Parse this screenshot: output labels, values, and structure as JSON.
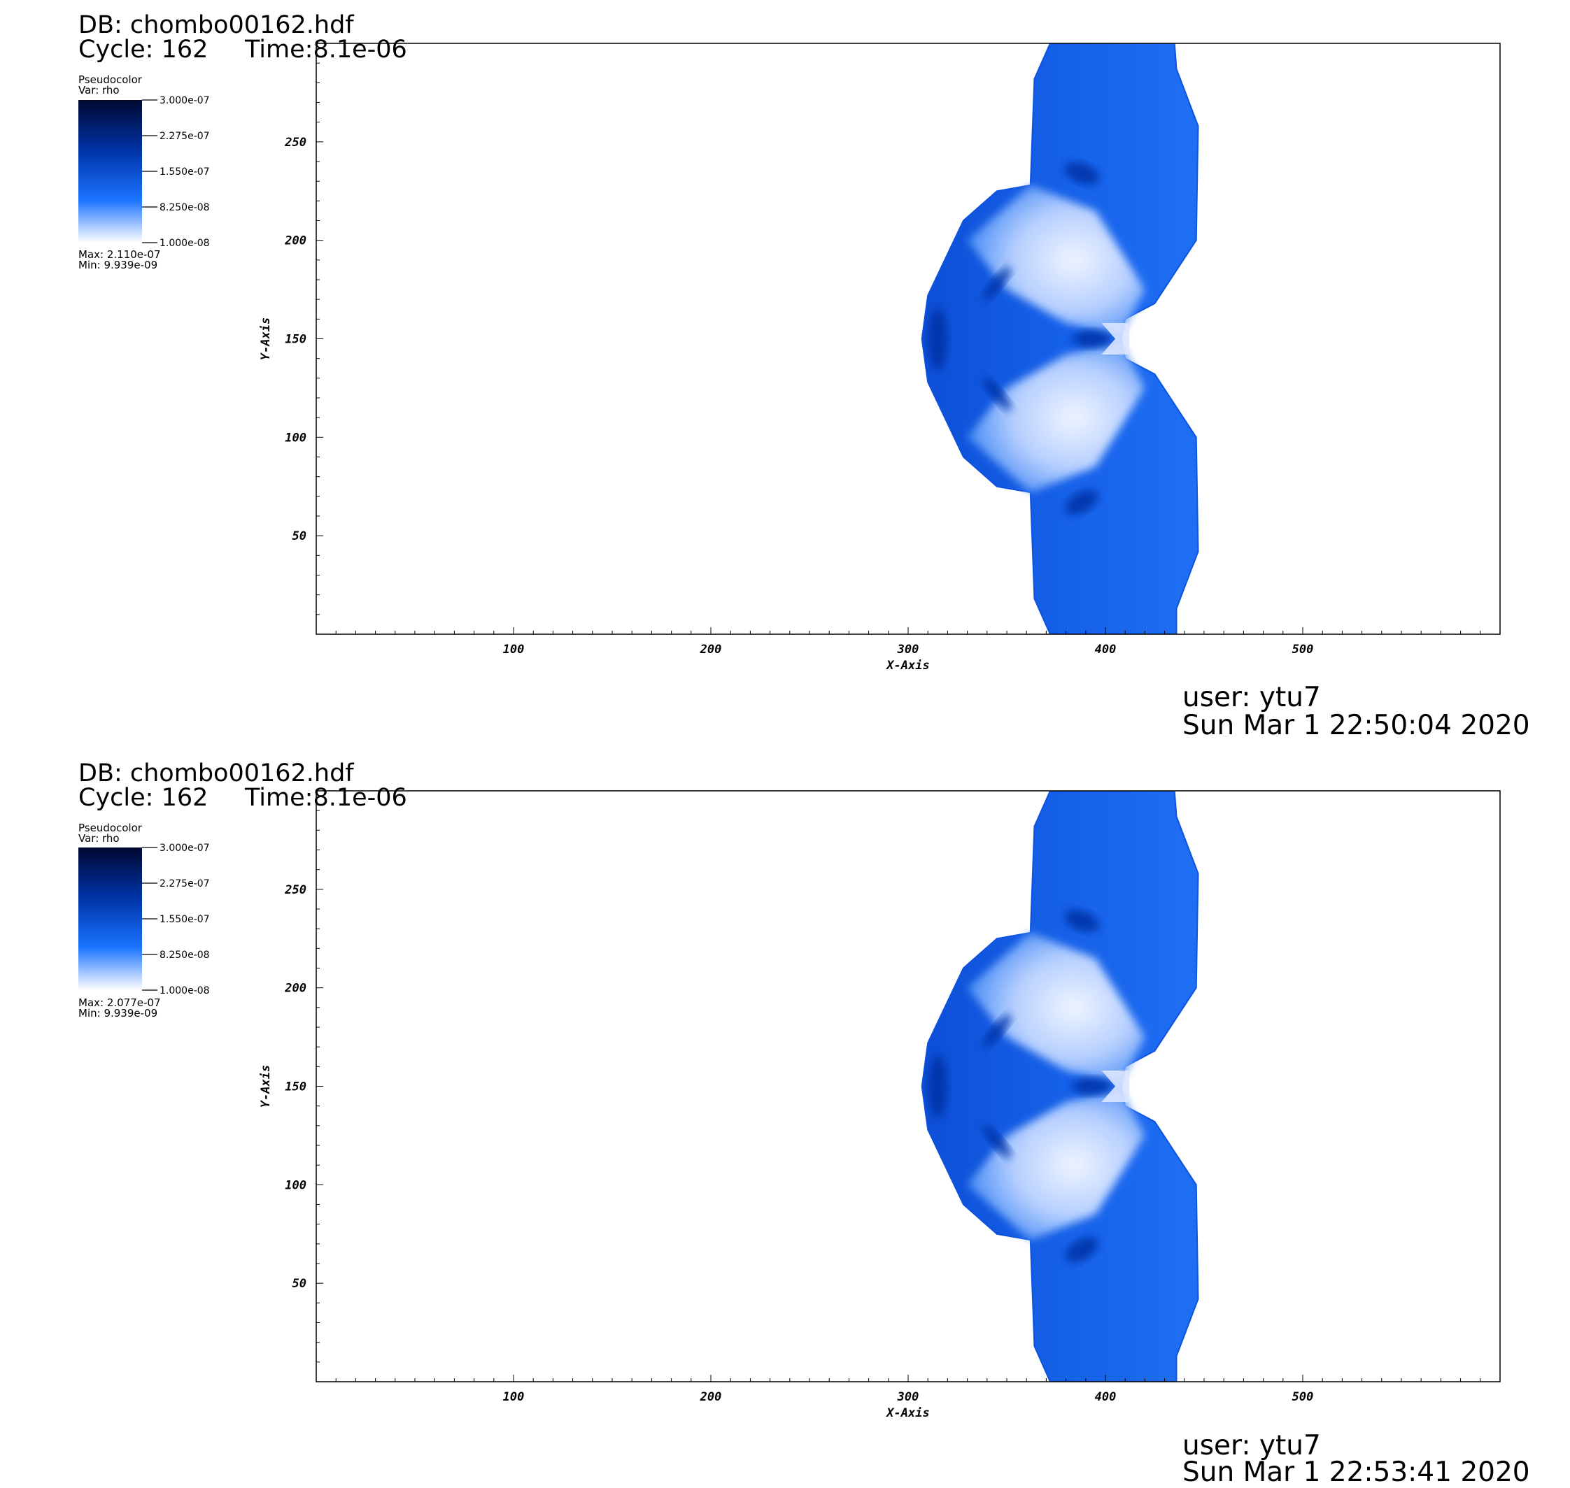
{
  "panels": [
    {
      "db": "DB: chombo00162.hdf",
      "cycle": "Cycle: 162",
      "time": "Time:8.1e-06",
      "legend": {
        "plot": "Pseudocolor",
        "var": "Var: rho",
        "ticks": [
          "3.000e-07",
          "2.275e-07",
          "1.550e-07",
          "8.250e-08",
          "1.000e-08"
        ],
        "max": "Max: 2.110e-07",
        "min": "Min: 9.939e-09"
      },
      "user": "user: ytu7",
      "date": "Sun Mar  1 22:50:04 2020"
    },
    {
      "db": "DB: chombo00162.hdf",
      "cycle": "Cycle: 162",
      "time": "Time:8.1e-06",
      "legend": {
        "plot": "Pseudocolor",
        "var": "Var: rho",
        "ticks": [
          "3.000e-07",
          "2.275e-07",
          "1.550e-07",
          "8.250e-08",
          "1.000e-08"
        ],
        "max": "Max: 2.077e-07",
        "min": "Min: 9.939e-09"
      },
      "user": "user: ytu7",
      "date": "Sun Mar  1 22:53:41 2020"
    }
  ],
  "chart_data": [
    {
      "type": "heatmap",
      "xlabel": "X-Axis",
      "ylabel": "Y-Axis",
      "xlim": [
        0,
        600
      ],
      "ylim": [
        0,
        300
      ],
      "xticks": [
        100,
        200,
        300,
        400,
        500
      ],
      "yticks": [
        50,
        100,
        150,
        200,
        250
      ],
      "colormap": [
        "#ffffff",
        "#1a73ff",
        "#0033a6",
        "#000830"
      ],
      "value_range": [
        1e-08,
        3e-07
      ]
    },
    {
      "type": "heatmap",
      "xlabel": "X-Axis",
      "ylabel": "Y-Axis",
      "xlim": [
        0,
        600
      ],
      "ylim": [
        0,
        300
      ],
      "xticks": [
        100,
        200,
        300,
        400,
        500
      ],
      "yticks": [
        50,
        100,
        150,
        200,
        250
      ],
      "colormap": [
        "#ffffff",
        "#1a73ff",
        "#0033a6",
        "#000830"
      ],
      "value_range": [
        1e-08,
        3e-07
      ]
    }
  ]
}
